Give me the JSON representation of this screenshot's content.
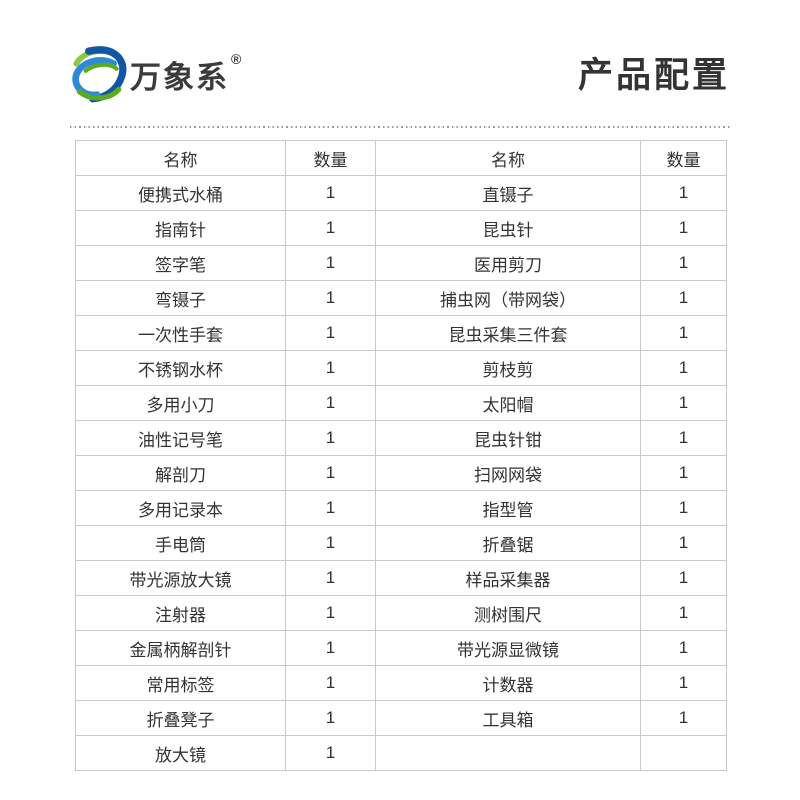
{
  "brand": {
    "logo_icon": "globe-swirl-icon",
    "name": "万象系",
    "registered_mark": "®"
  },
  "header": {
    "title": "产品配置"
  },
  "table": {
    "columns": [
      "名称",
      "数量",
      "名称",
      "数量"
    ],
    "rows": [
      [
        "便携式水桶",
        "1",
        "直镊子",
        "1"
      ],
      [
        "指南针",
        "1",
        "昆虫针",
        "1"
      ],
      [
        "签字笔",
        "1",
        "医用剪刀",
        "1"
      ],
      [
        "弯镊子",
        "1",
        "捕虫网（带网袋）",
        "1"
      ],
      [
        "一次性手套",
        "1",
        "昆虫采集三件套",
        "1"
      ],
      [
        "不锈钢水杯",
        "1",
        "剪枝剪",
        "1"
      ],
      [
        "多用小刀",
        "1",
        "太阳帽",
        "1"
      ],
      [
        "油性记号笔",
        "1",
        "昆虫针钳",
        "1"
      ],
      [
        "解剖刀",
        "1",
        "扫网网袋",
        "1"
      ],
      [
        "多用记录本",
        "1",
        "指型管",
        "1"
      ],
      [
        "手电筒",
        "1",
        "折叠锯",
        "1"
      ],
      [
        "带光源放大镜",
        "1",
        "样品采集器",
        "1"
      ],
      [
        "注射器",
        "1",
        "测树围尺",
        "1"
      ],
      [
        "金属柄解剖针",
        "1",
        "带光源显微镜",
        "1"
      ],
      [
        "常用标签",
        "1",
        "计数器",
        "1"
      ],
      [
        "折叠凳子",
        "1",
        "工具箱",
        "1"
      ],
      [
        "放大镜",
        "1",
        "",
        ""
      ]
    ]
  },
  "colors": {
    "title_text": "#333333",
    "cell_text": "#333333",
    "table_border": "#c9c9c9",
    "divider_dots": "#9b9b9b",
    "logo_blue_dark": "#1257a6",
    "logo_blue_light": "#2e8ad6",
    "logo_green": "#5aab1e",
    "logo_lime": "#8dc63f"
  }
}
